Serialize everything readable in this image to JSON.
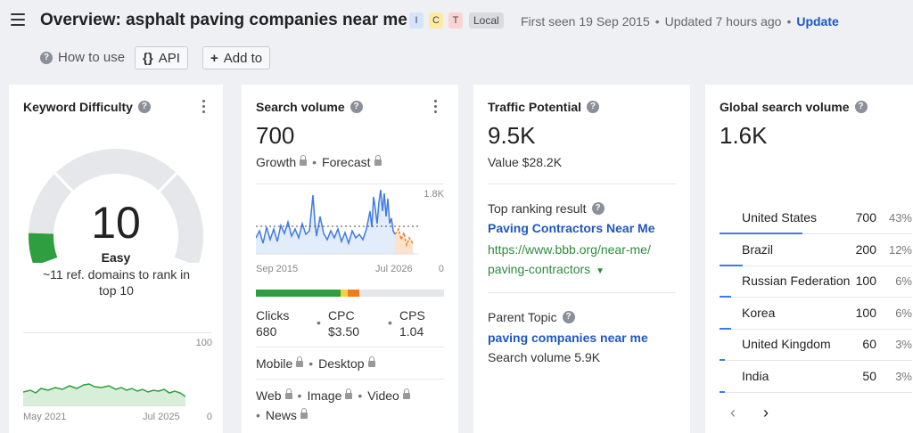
{
  "header": {
    "title": "Overview: asphalt paving companies near me",
    "intents": [
      "I",
      "C",
      "T"
    ],
    "intent_colors": [
      "#d5e4fb",
      "#fdeaa5",
      "#fbd3d3"
    ],
    "local_badge": "Local",
    "first_seen": "First seen 19 Sep 2015",
    "updated": "Updated 7 hours ago",
    "update_link": "Update"
  },
  "toolbar": {
    "how_to_use": "How to use",
    "api_label": "API",
    "add_to_label": "Add to"
  },
  "keyword_difficulty": {
    "title": "Keyword Difficulty",
    "value": "10",
    "label": "Easy",
    "subtext": "~11 ref. domains to rank in top 10",
    "gauge_fraction": 0.1,
    "accent_color": "#2e9e3f",
    "chart_y_max": "100",
    "chart_y_min": "0",
    "chart_x_start": "May 2021",
    "chart_x_end": "Jul 2025"
  },
  "search_volume": {
    "title": "Search volume",
    "value": "700",
    "growth": "Growth",
    "forecast": "Forecast",
    "chart_y_max": "1.8K",
    "chart_y_min": "0",
    "chart_x_start": "Sep 2015",
    "chart_x_end": "Jul 2026",
    "intent_bar": [
      {
        "color": "#2e9e3f",
        "fraction": 0.45
      },
      {
        "color": "#f4d03f",
        "fraction": 0.04
      },
      {
        "color": "#f07c1b",
        "fraction": 0.06
      },
      {
        "color": "#e4e6ea",
        "fraction": 0.45
      }
    ],
    "clicks_label": "Clicks",
    "clicks_value": "680",
    "cpc_label": "CPC",
    "cpc_value": "$3.50",
    "cps_label": "CPS",
    "cps_value": "1.04",
    "mobile": "Mobile",
    "desktop": "Desktop",
    "web": "Web",
    "image": "Image",
    "video": "Video",
    "news": "News"
  },
  "traffic_potential": {
    "title": "Traffic Potential",
    "value": "9.5K",
    "value_text": "Value $28.2K",
    "top_result_label": "Top ranking result",
    "top_result_title": "Paving Contractors Near Me",
    "top_result_url_1": "https://www.bbb.org/near-me/",
    "top_result_url_2": "paving-contractors",
    "parent_topic_label": "Parent Topic",
    "parent_topic_link": "paving companies near me",
    "parent_search_volume": "Search volume 5.9K"
  },
  "global_search_volume": {
    "title": "Global search volume",
    "value": "1.6K",
    "countries": [
      {
        "name": "United States",
        "value": "700",
        "pct": "43%",
        "share": 0.43
      },
      {
        "name": "Brazil",
        "value": "200",
        "pct": "12%",
        "share": 0.12
      },
      {
        "name": "Russian Federation",
        "value": "100",
        "pct": "6%",
        "share": 0.06
      },
      {
        "name": "Korea",
        "value": "100",
        "pct": "6%",
        "share": 0.06
      },
      {
        "name": "United Kingdom",
        "value": "60",
        "pct": "3%",
        "share": 0.03
      },
      {
        "name": "India",
        "value": "50",
        "pct": "3%",
        "share": 0.03
      }
    ]
  }
}
